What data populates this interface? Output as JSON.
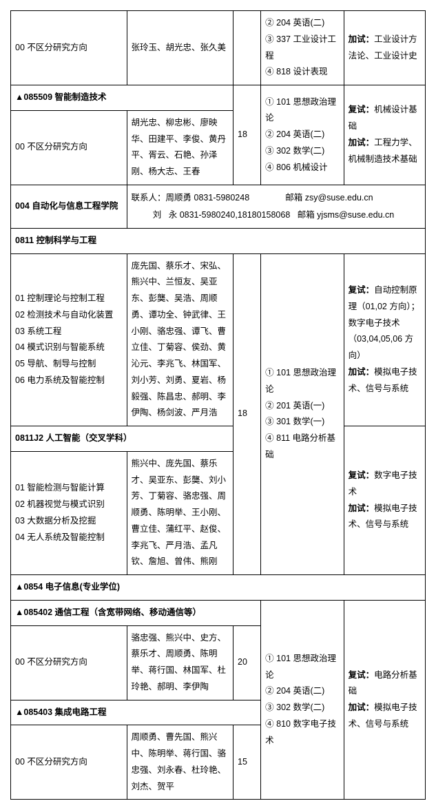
{
  "row1": {
    "dir": "00 不区分研究方向",
    "ppl": "张玲玉、胡光忠、张久美",
    "sub": "② 204 英语(二)\n③ 337 工业设计工程\n④ 818 设计表现",
    "ret": "加试：工业设计方法论、工业设计史"
  },
  "h085509": "▲085509 智能制造技术",
  "row085509": {
    "dir": "00 不区分研究方向",
    "ppl": "胡光忠、柳忠彬、廖映华、田建平、李俊、黄丹平、胥云、石艳、孙泽刚、杨大志、王春",
    "num": "18",
    "sub": "① 101 思想政治理论\n② 204 英语(二)\n③ 302 数学(二)\n④ 806 机械设计",
    "ret": "复试：机械设计基础\n加试：工程力学、机械制造技术基础"
  },
  "dept004": {
    "title": "004 自动化与信息工程学院",
    "contact": "联系人：周顺勇 0831-5980248               邮箱 zsy@suse.edu.cn\n         刘   永 0831-5980240,18180158068   邮箱 yjsms@suse.edu.cn"
  },
  "h0811": "0811 控制科学与工程",
  "row0811": {
    "dir": "01 控制理论与控制工程\n02 检测技术与自动化装置\n03 系统工程\n04 模式识别与智能系统\n05 导航、制导与控制\n06 电力系统及智能控制",
    "ppl": "庞先国、蔡乐才、宋弘、熊兴中、兰恒友、吴亚东、彭龑、吴浩、周顺勇、谭功全、钟武律、王小刚、骆忠强、谭飞、曹立佳、丁菊容、侯劲、黄沁元、李兆飞、林国军、刘小芳、刘勇、夏岩、杨毅强、陈昌忠、郝明、李伊陶、杨剑波、严月浩",
    "ret": "复试：自动控制原理（01,02 方向）；\n数字电子技术（03,04,05,06 方向）\n加试：模拟电子技术、信号与系统"
  },
  "shared0811": {
    "num": "18",
    "sub": "① 101 思想政治理论\n② 201 英语(一)\n③ 301 数学(一)\n④ 811 电路分析基础"
  },
  "h0811J2": "0811J2 人工智能（交叉学科）",
  "row0811J2": {
    "dir": "01 智能检测与智能计算\n02 机器视觉与模式识别\n03 大数据分析及挖掘\n04 无人系统及智能控制",
    "ppl": "熊兴中、庞先国、蔡乐才、吴亚东、彭龑、刘小芳、丁菊容、骆忠强、周顺勇、陈明举、王小刚、曹立佳、蒲红平、赵俊、李兆飞、严月浩、孟凡钦、詹旭、曾伟、熊刚",
    "ret": "复试：数字电子技术\n加试：模拟电子技术、信号与系统"
  },
  "h0854": "▲0854 电子信息(专业学位)",
  "h085402": "▲085402 通信工程（含宽带网络、移动通信等）",
  "row085402": {
    "dir": "00 不区分研究方向",
    "ppl": "骆忠强、熊兴中、史方、蔡乐才、周顺勇、陈明举、蒋行国、林国军、杜玲艳、郝明、李伊陶",
    "num": "20"
  },
  "shared0854": {
    "sub": "① 101 思想政治理论\n② 204 英语(二)\n③ 302 数学(二)\n④ 810 数字电子技术",
    "ret": "复试：电路分析基础\n加试：模拟电子技术、信号与系统"
  },
  "h085403": "▲085403 集成电路工程",
  "row085403": {
    "dir": "00 不区分研究方向",
    "ppl": "周顺勇、曹先国、熊兴中、陈明举、蒋行国、骆忠强、刘永春、杜玲艳、刘杰、贺平",
    "num": "15"
  }
}
